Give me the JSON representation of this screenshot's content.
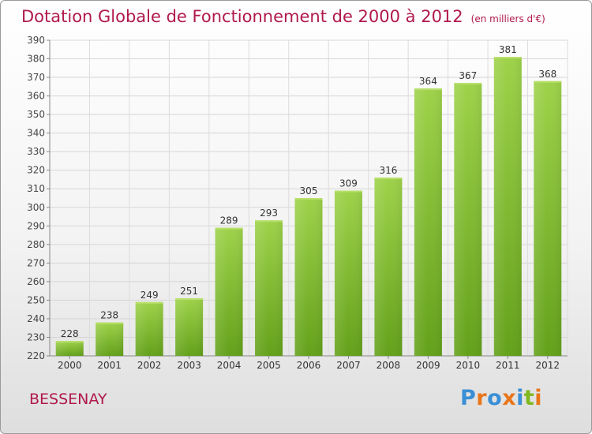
{
  "title": "Dotation Globale de Fonctionnement de 2000 à 2012",
  "subtitle": "(en milliers d'€)",
  "commune": "BESSENAY",
  "logo": {
    "text": "Proxiti",
    "colors": [
      "#3a8fd6",
      "#e8761a",
      "#3a8fd6",
      "#e8761a",
      "#3a8fd6",
      "#7fb81f",
      "#e8761a"
    ]
  },
  "chart_data": {
    "type": "bar",
    "title": "Dotation Globale de Fonctionnement de 2000 à 2012",
    "subtitle": "(en milliers d'€)",
    "xlabel": "",
    "ylabel": "",
    "categories": [
      "2000",
      "2001",
      "2002",
      "2003",
      "2004",
      "2005",
      "2006",
      "2007",
      "2008",
      "2009",
      "2010",
      "2011",
      "2012"
    ],
    "values": [
      228,
      238,
      249,
      251,
      289,
      293,
      305,
      309,
      316,
      364,
      367,
      381,
      368
    ],
    "ylim": [
      220,
      390
    ],
    "ytick_step": 10,
    "grid": true,
    "bar_color": "#7fb826",
    "bar_color_light": "#9ed24a",
    "data_labels": true,
    "legend": "none"
  }
}
